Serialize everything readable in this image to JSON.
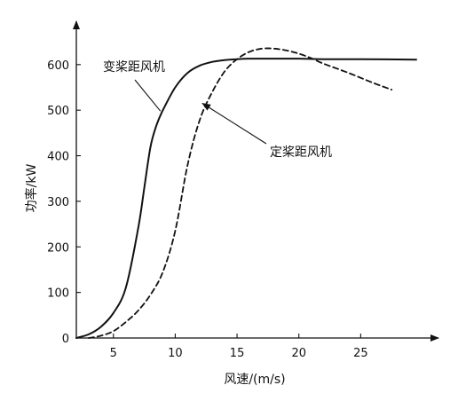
{
  "chart_data": {
    "type": "line",
    "xlabel": "风速/(m/s)",
    "ylabel": "功率/kW",
    "xlim": [
      2,
      30
    ],
    "ylim": [
      0,
      660
    ],
    "xticks": [
      5,
      10,
      15,
      20,
      25
    ],
    "yticks": [
      0,
      100,
      200,
      300,
      400,
      500,
      600
    ],
    "grid": false,
    "legend": "none",
    "series": [
      {
        "name": "变桨距风机",
        "style": "solid",
        "x": [
          2,
          3,
          4,
          5,
          6,
          7,
          7.5,
          8,
          8.5,
          9,
          10,
          11,
          12,
          13,
          14,
          15,
          16,
          18,
          20,
          22,
          25,
          29.5
        ],
        "y": [
          0,
          8,
          25,
          55,
          110,
          240,
          330,
          420,
          468,
          500,
          550,
          582,
          598,
          606,
          610,
          612,
          613,
          613,
          613,
          612,
          612,
          611
        ]
      },
      {
        "name": "定桨距风机",
        "style": "dashed",
        "x": [
          3,
          4,
          5,
          6,
          7,
          8,
          9,
          10,
          11,
          12,
          13,
          14,
          15,
          16,
          17,
          18,
          19,
          20,
          21,
          22,
          24,
          26,
          27.5
        ],
        "y": [
          0,
          5,
          15,
          35,
          60,
          95,
          145,
          235,
          380,
          480,
          540,
          585,
          612,
          628,
          635,
          635,
          631,
          624,
          614,
          602,
          582,
          560,
          545
        ]
      }
    ],
    "annotations": [
      {
        "text": "变桨距风机",
        "series": 0,
        "target": [
          8.8,
          498
        ]
      },
      {
        "text": "定桨距风机",
        "series": 1,
        "target": [
          12.2,
          515
        ]
      }
    ]
  }
}
